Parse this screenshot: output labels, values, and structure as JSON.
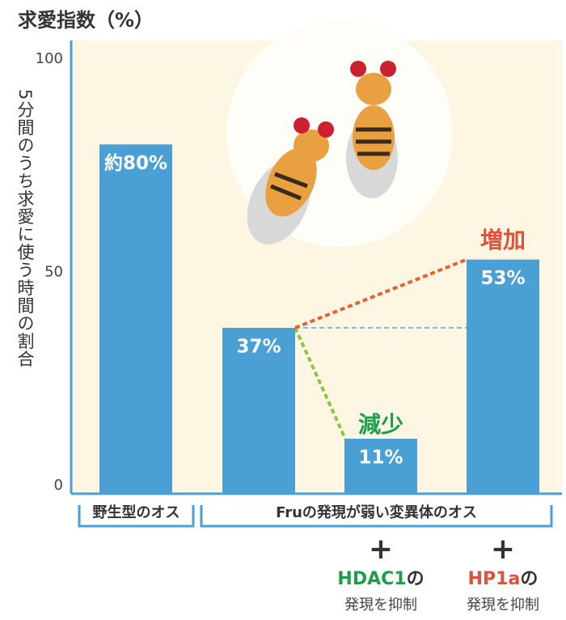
{
  "chart_data": {
    "type": "bar",
    "title": "求愛指数（%）",
    "y_axis_label": "5分間のうち求愛に使う時間の割合",
    "ylim": [
      0,
      100
    ],
    "yticks": [
      0,
      50,
      100
    ],
    "color": "#4a9fd5",
    "values": [
      80,
      37,
      11,
      53
    ],
    "value_labels": [
      "約80%",
      "37%",
      "11%",
      "53%"
    ],
    "groups": [
      {
        "label": "野生型のオス",
        "span": 1
      },
      {
        "label": "Fruの発現が弱い変異体のオス",
        "span": 3
      }
    ],
    "categories": [
      null,
      null,
      {
        "plus": "+",
        "gene": "HDAC1",
        "particle": "の",
        "action": "発現を抑制",
        "gene_color": "#1a9e4a"
      },
      {
        "plus": "+",
        "gene": "HP1a",
        "particle": "の",
        "action": "発現を抑制",
        "gene_color": "#e0503a"
      }
    ],
    "annotations": [
      {
        "text": "減少",
        "color": "#1a9e4a",
        "line_color": "#8cc63f"
      },
      {
        "text": "増加",
        "color": "#e0503a",
        "line_color": "#e8622f"
      }
    ]
  }
}
